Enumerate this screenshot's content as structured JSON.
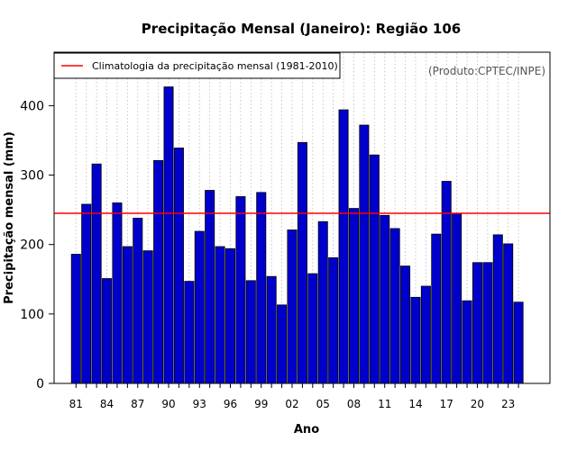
{
  "colors": {
    "bar_fill": "#0000cc",
    "bar_stroke": "#000000",
    "climatology_line": "#ff0000",
    "grid": "#bbbbbb"
  },
  "credit": "(Produto:CPTEC/INPE)",
  "chart_data": {
    "type": "bar",
    "title": "Precipitação Mensal (Janeiro): Região 106",
    "xlabel": "Ano",
    "ylabel": "Precipitação mensal (mm)",
    "ylim": [
      0,
      480
    ],
    "yticks": [
      0,
      100,
      200,
      300,
      400
    ],
    "grid": "vertical dotted",
    "categories": [
      "81",
      "82",
      "83",
      "84",
      "85",
      "86",
      "87",
      "88",
      "89",
      "90",
      "91",
      "92",
      "93",
      "94",
      "95",
      "96",
      "97",
      "98",
      "99",
      "00",
      "01",
      "02",
      "03",
      "04",
      "05",
      "06",
      "07",
      "08",
      "09",
      "10",
      "11",
      "12",
      "13",
      "14",
      "15",
      "16",
      "17",
      "18",
      "19",
      "20",
      "21",
      "22",
      "23",
      "24"
    ],
    "xtick_labels": [
      "81",
      "84",
      "87",
      "90",
      "93",
      "96",
      "99",
      "02",
      "05",
      "08",
      "11",
      "14",
      "17",
      "20",
      "23"
    ],
    "values": [
      186,
      258,
      316,
      151,
      260,
      197,
      238,
      191,
      321,
      427,
      339,
      147,
      219,
      278,
      197,
      194,
      269,
      148,
      275,
      154,
      113,
      221,
      347,
      158,
      233,
      181,
      394,
      252,
      372,
      329,
      242,
      223,
      169,
      124,
      140,
      215,
      291,
      245,
      119,
      174,
      174,
      214,
      201,
      117
    ],
    "climatology": 245,
    "legend": {
      "entries": [
        "Climatologia da precipitação mensal (1981-2010)"
      ],
      "position": "top-left"
    }
  }
}
